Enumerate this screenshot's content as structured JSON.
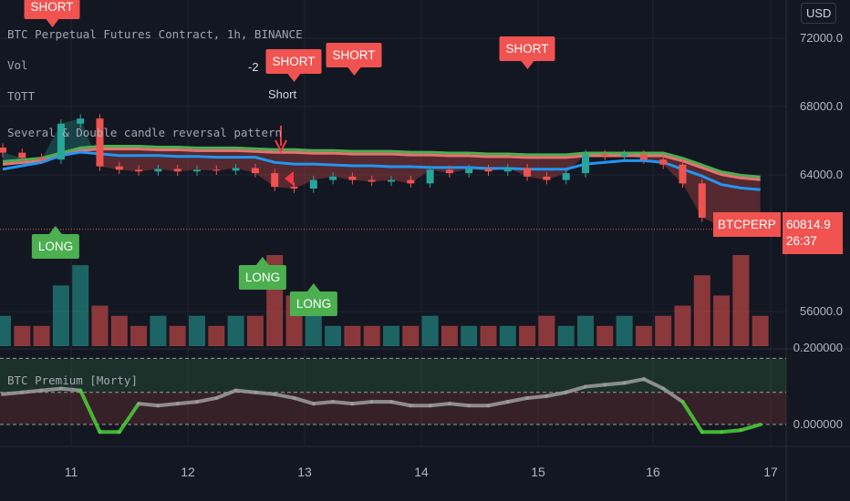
{
  "legend": {
    "symbol": "BTC Perpetual Futures Contract, 1h, BINANCE",
    "vol": "Vol",
    "tott": "TOTT",
    "pattern": "Several & Double candle reversal pattern",
    "premium": "BTC Premium [Morty]"
  },
  "currency_button": "USD",
  "price_tag": {
    "symbol": "BTCPERP",
    "price": "60814.9",
    "countdown": "26:37"
  },
  "colors": {
    "background": "#131722",
    "up": "#26a69a",
    "down": "#ef5350",
    "ott_green": "#4caf50",
    "ott_red": "#e57373",
    "mavg": "#2196f3",
    "premium_line": "#9e9e9e",
    "premium_negative": "#4cd137"
  },
  "signals": {
    "short": "SHORT",
    "long": "LONG",
    "short_count": "-2",
    "short_text": "Short"
  },
  "chart_data": [
    {
      "type": "candlestick",
      "title": "BTC Perpetual Futures Contract, 1h, BINANCE",
      "x_ticks": [
        "11",
        "12",
        "13",
        "14",
        "15",
        "16",
        "17"
      ],
      "y_ticks": [
        "72000.0",
        "68000.0",
        "64000.0",
        "56000.0"
      ],
      "ylim": [
        53900,
        74300
      ],
      "grid": true,
      "close": [
        65300,
        65000,
        64900,
        67000,
        67300,
        64500,
        64300,
        64200,
        64350,
        64200,
        64300,
        64250,
        64400,
        64100,
        63300,
        63200,
        63700,
        63900,
        63700,
        63600,
        63700,
        63500,
        64300,
        64100,
        64350,
        64200,
        64400,
        63900,
        63700,
        64100,
        65200,
        65100,
        65200,
        64900,
        64600,
        63500,
        61500,
        61000,
        60900,
        60815
      ],
      "ott": [
        64700,
        64800,
        64900,
        65200,
        65500,
        65600,
        65600,
        65600,
        65550,
        65550,
        65500,
        65500,
        65500,
        65450,
        65400,
        65400,
        65350,
        65350,
        65300,
        65300,
        65300,
        65250,
        65250,
        65200,
        65200,
        65150,
        65150,
        65100,
        65100,
        65100,
        65200,
        65200,
        65200,
        65200,
        65200,
        64900,
        64500,
        64100,
        63900,
        63800
      ],
      "mavg": [
        64600,
        64800,
        65000,
        65400,
        65600,
        65500,
        65400,
        65400,
        65400,
        65350,
        65350,
        65300,
        65300,
        65300,
        65000,
        64900,
        64900,
        64850,
        64800,
        64800,
        64750,
        64750,
        64700,
        64700,
        64700,
        64650,
        64650,
        64600,
        64600,
        64600,
        64900,
        65000,
        65100,
        65100,
        65000,
        64600,
        64200,
        63700,
        63500,
        63400
      ],
      "volume": [
        3,
        2,
        2,
        6,
        8,
        4,
        3,
        2,
        3,
        2,
        3,
        2,
        3,
        3,
        9,
        5,
        3,
        2,
        2,
        2,
        2,
        2,
        3,
        2,
        2,
        2,
        2,
        2,
        3,
        2,
        3,
        2,
        3,
        2,
        3,
        4,
        7,
        5,
        9,
        3
      ]
    },
    {
      "type": "line",
      "title": "BTC Premium [Morty]",
      "y_ticks": [
        "0.200000",
        "0.000000"
      ],
      "bands": [
        0.175,
        0.085,
        0.0
      ],
      "values": [
        0.08,
        0.085,
        0.09,
        0.095,
        0.09,
        -0.02,
        -0.02,
        0.055,
        0.05,
        0.055,
        0.06,
        0.07,
        0.09,
        0.085,
        0.08,
        0.07,
        0.055,
        0.06,
        0.055,
        0.06,
        0.06,
        0.05,
        0.05,
        0.055,
        0.05,
        0.05,
        0.06,
        0.07,
        0.075,
        0.085,
        0.1,
        0.105,
        0.11,
        0.12,
        0.095,
        0.06,
        -0.02,
        -0.02,
        -0.015,
        0.0
      ]
    }
  ]
}
